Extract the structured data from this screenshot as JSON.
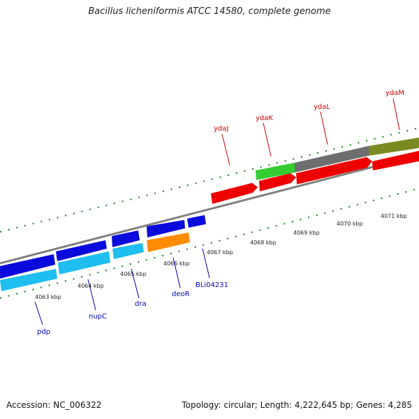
{
  "title": "Bacillus licheniformis ATCC 14580, complete genome",
  "footer": {
    "accession": "Accession: NC_006322",
    "topology": "Topology: circular; Length: 4,222,645 bp; Genes: 4,285"
  },
  "colors": {
    "background": "#ffffff",
    "backbone": "#808080",
    "ticks": "#1a7a1a",
    "tick_label": "#222222",
    "gene_label_top": "#cc0000",
    "gene_label_bottom": "#0000b0",
    "gene_blue": "#0a0adc",
    "gene_lightblue": "#1ebef0",
    "gene_orange": "#ff8c00",
    "gene_red": "#ee0000",
    "gene_green": "#33cc33",
    "gene_grey": "#6e6e6e",
    "gene_olive": "#7a8a20"
  },
  "tick_labels": [
    "4063 kbp",
    "4064 kbp",
    "4065 kbp",
    "4066 kbp",
    "4067 kbp",
    "4068 kbp",
    "4069 kbp",
    "4070 kbp",
    "4071 kbp"
  ],
  "top_gene_labels": [
    "ydaJ",
    "ydaK",
    "ydaL",
    "ydaM"
  ],
  "bottom_gene_labels": [
    "pdp",
    "nupC",
    "dra",
    "deoR",
    "BLi04231"
  ]
}
